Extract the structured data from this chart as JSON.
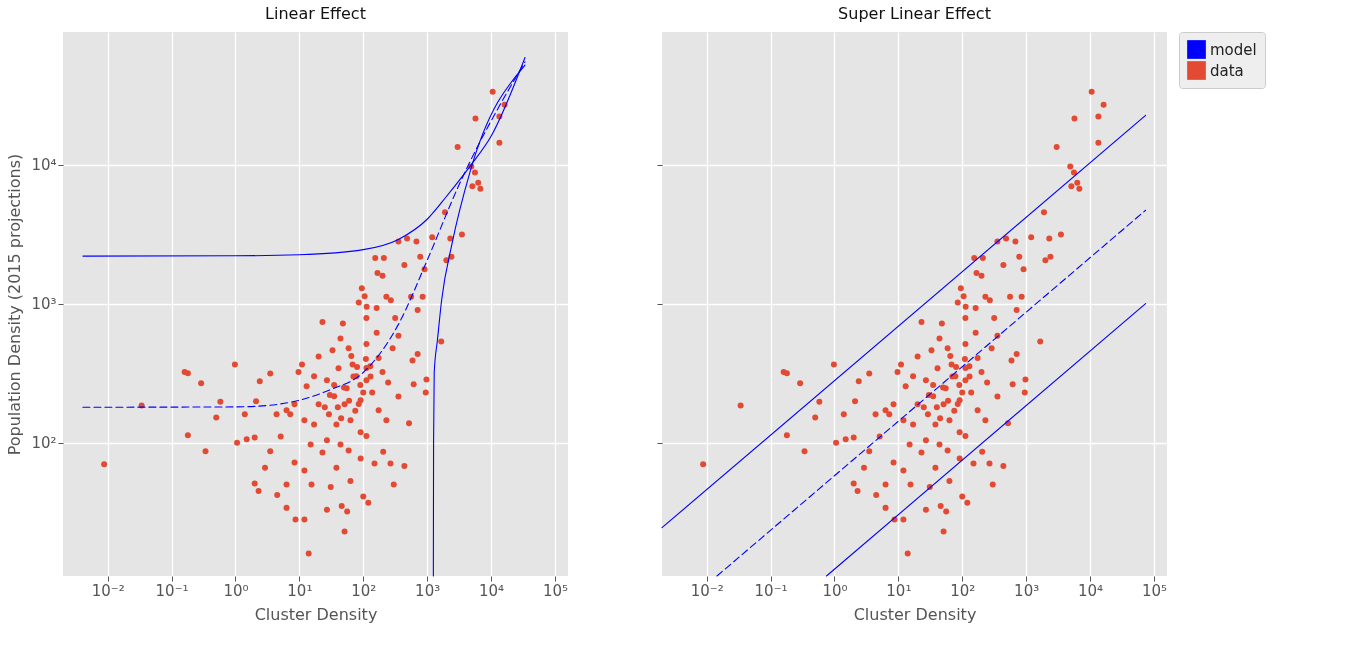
{
  "chart_data": [
    {
      "type": "scatter",
      "title": "Linear Effect",
      "xlabel": "Cluster Density",
      "ylabel": "Population Density (2015 projections)",
      "log": "xy",
      "grid": true,
      "xlim": [
        0.002,
        160000
      ],
      "ylim": [
        11,
        90000
      ],
      "xticks": [
        {
          "value": 0.01,
          "label": "10⁻²"
        },
        {
          "value": 0.1,
          "label": "10⁻¹"
        },
        {
          "value": 1,
          "label": "10⁰"
        },
        {
          "value": 10,
          "label": "10¹"
        },
        {
          "value": 100,
          "label": "10²"
        },
        {
          "value": 1000,
          "label": "10³"
        },
        {
          "value": 10000,
          "label": "10⁴"
        },
        {
          "value": 100000,
          "label": "10⁵"
        }
      ],
      "yticks": [
        {
          "value": 100,
          "label": "10²"
        },
        {
          "value": 1000,
          "label": "10³"
        },
        {
          "value": 10000,
          "label": "10⁴"
        }
      ],
      "series": [
        {
          "type": "line",
          "line_style": "solid",
          "color": "#0000ff",
          "x": [
            0.0041,
            1,
            10,
            100,
            355,
            1000,
            2000,
            4900,
            10000,
            34000
          ],
          "values": [
            2200,
            2210,
            2250,
            2450,
            2900,
            4050,
            5900,
            10000,
            16000,
            59000
          ]
        },
        {
          "type": "line",
          "line_style": "dashed",
          "color": "#0000ff",
          "x": [
            0.0041,
            1,
            3,
            10,
            30,
            100,
            355,
            1000,
            3000,
            34000
          ],
          "values": [
            180,
            181,
            185,
            202,
            240,
            320,
            710,
            2050,
            6800,
            55000
          ]
        },
        {
          "type": "line",
          "line_style": "solid",
          "color": "#0000ff",
          "x": [
            1250,
            1260,
            1290,
            1450,
            1680,
            2450,
            4700,
            34000
          ],
          "values": [
            11,
            100,
            320,
            550,
            1050,
            2700,
            8900,
            52000
          ]
        },
        {
          "marker": "circle",
          "color": "#e24a33",
          "x": [
            0.0088,
            0.034,
            0.16,
            0.18,
            0.29,
            0.18,
            0.34,
            0.5,
            0.58,
            0.98,
            1.06,
            1.4,
            1.5,
            2,
            2.4,
            2.1,
            2,
            2.3,
            2.9,
            3.5,
            3.5,
            4.5,
            5.1,
            6.3,
            6.3,
            8.7,
            12,
            14,
            51,
            8.4,
            12,
            15.5,
            27,
            46,
            56,
            31,
            63,
            100,
            120,
            150,
            205,
            267,
            300,
            440,
            520,
            355,
            615,
            975,
            950,
            590,
            710,
            710,
            850,
            560,
            910,
            780,
            680,
            440,
            355,
            485,
            1200,
            1900,
            2000,
            2300,
            2400,
            3500,
            1660,
            3000,
            4900,
            5100,
            5600,
            6300,
            6800,
            5700,
            10600,
            13500,
            13500,
            16300,
            200,
            154,
            210,
            167,
            95,
            105,
            113,
            270,
            230,
            316,
            23,
            48,
            85,
            33,
            59,
            112,
            129,
            68,
            41,
            27,
            17,
            13,
            20,
            35,
            55,
            78,
            112,
            138,
            91,
            51,
            29,
            17,
            12,
            38,
            63,
            91,
            27,
            15,
            44,
            23,
            91,
            8.4,
            6.3,
            4.4,
            11,
            9.7,
            7.2,
            162,
            174,
            200,
            245,
            288,
            355,
            174,
            230,
            112,
            59,
            38,
            112,
            162,
            44,
            20,
            100,
            112,
            50,
            70,
            60,
            40,
            80,
            90,
            30,
            45,
            75,
            110,
            130,
            25,
            35,
            65,
            85
          ],
          "values": [
            70,
            185,
            322,
            316,
            268,
            113,
            87,
            152,
            197,
            365,
            100,
            160,
            106,
            109,
            277,
            199,
            51,
            45,
            66,
            315,
            87,
            42,
            111,
            50,
            34,
            28,
            28,
            16,
            23,
            72,
            63,
            50,
            33,
            35,
            32,
            48,
            53,
            41,
            37,
            71,
            86,
            71,
            50,
            68,
            138,
            215,
            263,
            285,
            230,
            390,
            435,
            900,
            1120,
            1120,
            1770,
            2180,
            2800,
            1900,
            2800,
            2950,
            3000,
            4550,
            2050,
            2950,
            2180,
            3150,
            535,
            13400,
            9700,
            7000,
            8800,
            7400,
            6700,
            21500,
            33500,
            22200,
            14400,
            27000,
            1590,
            2130,
            2130,
            1660,
            1290,
            1130,
            950,
            1060,
            1120,
            790,
            740,
            720,
            1020,
            462,
            478,
            513,
            355,
            366,
            343,
            281,
            301,
            255,
            189,
            216,
            246,
            301,
            281,
            230,
            202,
            189,
            160,
            135,
            145,
            135,
            145,
            119,
            104,
            97,
            97,
            85,
            77,
            189,
            171,
            160,
            366,
            322,
            160,
            617,
            406,
            322,
            271,
            478,
            588,
            171,
            145,
            112,
            88,
            66,
            790,
            930,
            563,
            417,
            230,
            345,
            250,
            300,
            200,
            180,
            350,
            260,
            220,
            150,
            170,
            400,
            300,
            180,
            260,
            420,
            190
          ]
        }
      ]
    },
    {
      "type": "scatter",
      "title": "Super Linear Effect",
      "xlabel": "Cluster Density",
      "log": "xy",
      "grid": true,
      "legend": "top right",
      "tick_labels": "x",
      "xlim": [
        0.002,
        160000
      ],
      "ylim": [
        11,
        90000
      ],
      "xticks": [
        {
          "value": 0.01,
          "label": "10⁻²"
        },
        {
          "value": 0.1,
          "label": "10⁻¹"
        },
        {
          "value": 1,
          "label": "10⁰"
        },
        {
          "value": 10,
          "label": "10¹"
        },
        {
          "value": 100,
          "label": "10²"
        },
        {
          "value": 1000,
          "label": "10³"
        },
        {
          "value": 10000,
          "label": "10⁴"
        },
        {
          "value": 100000,
          "label": "10⁵"
        }
      ],
      "yticks": [
        {
          "value": 100,
          "label": null
        },
        {
          "value": 1000,
          "label": null
        },
        {
          "value": 10000,
          "label": null
        }
      ],
      "series": [
        {
          "name": "model",
          "type": "line",
          "line_style": "solid",
          "color": "#0000ff",
          "x": [
            0.002,
            74000
          ],
          "values": [
            24.5,
            22600
          ]
        },
        {
          "type": "line",
          "line_style": "dashed",
          "color": "#0000ff",
          "x": [
            0.0145,
            74000
          ],
          "values": [
            11,
            4700
          ]
        },
        {
          "type": "line",
          "line_style": "solid",
          "color": "#0000ff",
          "x": [
            0.75,
            74000
          ],
          "values": [
            11,
            1000
          ]
        },
        {
          "name": "data",
          "marker": "circle",
          "color": "#e24a33",
          "x": [
            0.0088,
            0.034,
            0.16,
            0.18,
            0.29,
            0.18,
            0.34,
            0.5,
            0.58,
            0.98,
            1.06,
            1.4,
            1.5,
            2,
            2.4,
            2.1,
            2,
            2.3,
            2.9,
            3.5,
            3.5,
            4.5,
            5.1,
            6.3,
            6.3,
            8.7,
            12,
            14,
            51,
            8.4,
            12,
            15.5,
            27,
            46,
            56,
            31,
            63,
            100,
            120,
            150,
            205,
            267,
            300,
            440,
            520,
            355,
            615,
            975,
            950,
            590,
            710,
            710,
            850,
            560,
            910,
            780,
            680,
            440,
            355,
            485,
            1200,
            1900,
            2000,
            2300,
            2400,
            3500,
            1660,
            3000,
            4900,
            5100,
            5600,
            6300,
            6800,
            5700,
            10600,
            13500,
            13500,
            16300,
            200,
            154,
            210,
            167,
            95,
            105,
            113,
            270,
            230,
            316,
            23,
            48,
            85,
            33,
            59,
            112,
            129,
            68,
            41,
            27,
            17,
            13,
            20,
            35,
            55,
            78,
            112,
            138,
            91,
            51,
            29,
            17,
            12,
            38,
            63,
            91,
            27,
            15,
            44,
            23,
            91,
            8.4,
            6.3,
            4.4,
            11,
            9.7,
            7.2,
            162,
            174,
            200,
            245,
            288,
            355,
            174,
            230,
            112,
            59,
            38,
            112,
            162,
            44,
            20,
            100,
            112,
            50,
            70,
            60,
            40,
            80,
            90,
            30,
            45,
            75,
            110,
            130,
            25,
            35,
            65,
            85
          ],
          "values": [
            70,
            185,
            322,
            316,
            268,
            113,
            87,
            152,
            197,
            365,
            100,
            160,
            106,
            109,
            277,
            199,
            51,
            45,
            66,
            315,
            87,
            42,
            111,
            50,
            34,
            28,
            28,
            16,
            23,
            72,
            63,
            50,
            33,
            35,
            32,
            48,
            53,
            41,
            37,
            71,
            86,
            71,
            50,
            68,
            138,
            215,
            263,
            285,
            230,
            390,
            435,
            900,
            1120,
            1120,
            1770,
            2180,
            2800,
            1900,
            2800,
            2950,
            3000,
            4550,
            2050,
            2950,
            2180,
            3150,
            535,
            13400,
            9700,
            7000,
            8800,
            7400,
            6700,
            21500,
            33500,
            22200,
            14400,
            27000,
            1590,
            2130,
            2130,
            1660,
            1290,
            1130,
            950,
            1060,
            1120,
            790,
            740,
            720,
            1020,
            462,
            478,
            513,
            355,
            366,
            343,
            281,
            301,
            255,
            189,
            216,
            246,
            301,
            281,
            230,
            202,
            189,
            160,
            135,
            145,
            135,
            145,
            119,
            104,
            97,
            97,
            85,
            77,
            189,
            171,
            160,
            366,
            322,
            160,
            617,
            406,
            322,
            271,
            478,
            588,
            171,
            145,
            112,
            88,
            66,
            790,
            930,
            563,
            417,
            230,
            345,
            250,
            300,
            200,
            180,
            350,
            260,
            220,
            150,
            170,
            400,
            300,
            180,
            260,
            420,
            190
          ]
        }
      ]
    }
  ]
}
